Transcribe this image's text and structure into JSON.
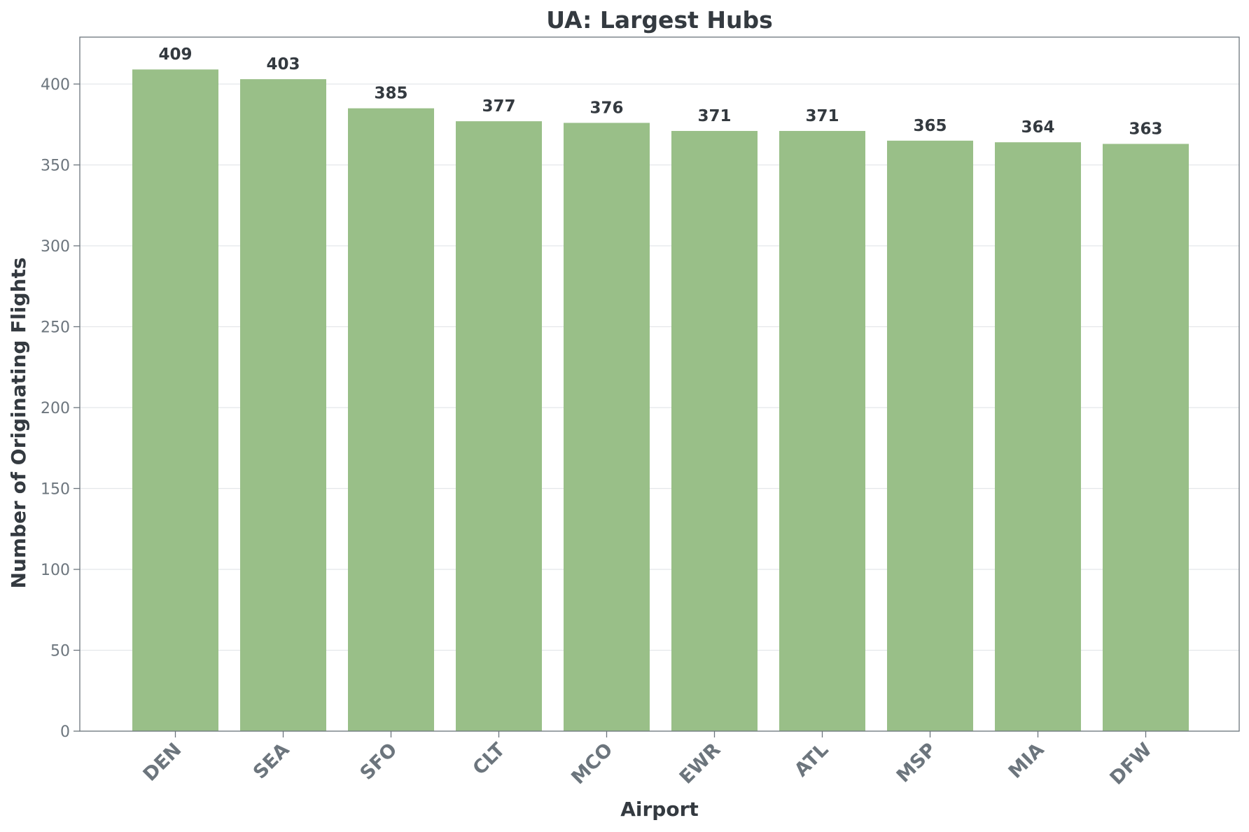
{
  "chart_data": {
    "type": "bar",
    "title": "UA: Largest Hubs",
    "xlabel": "Airport",
    "ylabel": "Number of Originating Flights",
    "categories": [
      "DEN",
      "SEA",
      "SFO",
      "CLT",
      "MCO",
      "EWR",
      "ATL",
      "MSP",
      "MIA",
      "DFW"
    ],
    "values": [
      409,
      403,
      385,
      377,
      376,
      371,
      371,
      365,
      364,
      363
    ],
    "value_labels": [
      "409",
      "403",
      "385",
      "377",
      "376",
      "371",
      "371",
      "365",
      "364",
      "363"
    ],
    "ylim": [
      0,
      429
    ],
    "yticks": [
      0,
      50,
      100,
      150,
      200,
      250,
      300,
      350,
      400
    ],
    "ytick_labels": [
      "0",
      "50",
      "100",
      "150",
      "200",
      "250",
      "300",
      "350",
      "400"
    ],
    "grid": "y-axis horizontal lines",
    "legend": "none",
    "xtick_rotation": "45 degrees"
  },
  "colors": {
    "bar": "#99bf88",
    "title_text": "#343a40",
    "axis_text": "#6c757d",
    "axis_line": "#6c757d",
    "grid": "#e4e7ea",
    "value_text": "#343a40"
  }
}
